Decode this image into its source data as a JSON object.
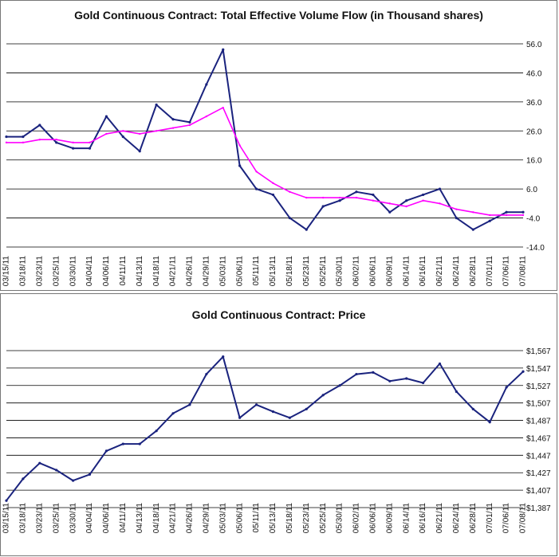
{
  "chart_data": [
    {
      "type": "line",
      "title": "Gold Continuous Contract: Total Effective Volume Flow (in Thousand shares)",
      "ylim": [
        -14,
        56
      ],
      "yticks": [
        "56.0",
        "46.0",
        "36.0",
        "26.0",
        "16.0",
        "6.0",
        "-4.0",
        "-14.0"
      ],
      "ytick_values": [
        56,
        46,
        36,
        26,
        16,
        6,
        -4,
        -14
      ],
      "x": [
        "03/15/11",
        "03/18/11",
        "03/23/11",
        "03/25/11",
        "03/30/11",
        "04/04/11",
        "04/06/11",
        "04/11/11",
        "04/13/11",
        "04/18/11",
        "04/21/11",
        "04/26/11",
        "04/29/11",
        "05/03/11",
        "05/06/11",
        "05/11/11",
        "05/13/11",
        "05/18/11",
        "05/23/11",
        "05/25/11",
        "05/30/11",
        "06/02/11",
        "06/06/11",
        "06/09/11",
        "06/14/11",
        "06/16/11",
        "06/21/11",
        "06/24/11",
        "06/28/11",
        "07/01/11",
        "07/06/11",
        "07/08/11"
      ],
      "series": [
        {
          "values": [
            24,
            24,
            28,
            22,
            20,
            20,
            31,
            24,
            19,
            35,
            30,
            29,
            42,
            54,
            14,
            6,
            4,
            -4,
            -8,
            0,
            2,
            5,
            4,
            -2,
            2,
            4,
            6,
            -4,
            -8,
            -5,
            -2,
            -2
          ],
          "color": "#1a237e"
        },
        {
          "values": [
            22,
            22,
            23,
            23,
            22,
            22,
            25,
            26,
            25,
            26,
            27,
            28,
            31,
            34,
            21,
            12,
            8,
            5,
            3,
            3,
            3,
            3,
            2,
            1,
            0,
            2,
            1,
            -1,
            -2,
            -3,
            -3,
            -3
          ],
          "color": "#ff00ff"
        }
      ],
      "grid": true
    },
    {
      "type": "line",
      "title": "Gold Continuous Contract: Price",
      "ylim": [
        1387,
        1567
      ],
      "yticks": [
        "$1,567",
        "$1,547",
        "$1,527",
        "$1,507",
        "$1,487",
        "$1,467",
        "$1,447",
        "$1,427",
        "$1,407",
        "$1,387"
      ],
      "ytick_values": [
        1567,
        1547,
        1527,
        1507,
        1487,
        1467,
        1447,
        1427,
        1407,
        1387
      ],
      "x": [
        "03/15/11",
        "03/18/11",
        "03/23/11",
        "03/25/11",
        "03/30/11",
        "04/04/11",
        "04/06/11",
        "04/11/11",
        "04/13/11",
        "04/18/11",
        "04/21/11",
        "04/26/11",
        "04/29/11",
        "05/03/11",
        "05/06/11",
        "05/11/11",
        "05/13/11",
        "05/18/11",
        "05/23/11",
        "05/25/11",
        "05/30/11",
        "06/02/11",
        "06/06/11",
        "06/09/11",
        "06/14/11",
        "06/16/11",
        "06/21/11",
        "06/24/11",
        "06/28/11",
        "07/01/11",
        "07/06/11",
        "07/08/11"
      ],
      "series": [
        {
          "values": [
            1395,
            1420,
            1438,
            1430,
            1418,
            1425,
            1452,
            1460,
            1460,
            1475,
            1495,
            1505,
            1540,
            1560,
            1490,
            1505,
            1497,
            1490,
            1500,
            1516,
            1527,
            1540,
            1542,
            1532,
            1535,
            1530,
            1552,
            1520,
            1500,
            1485,
            1525,
            1543
          ],
          "color": "#1a237e"
        }
      ],
      "grid": true
    }
  ]
}
